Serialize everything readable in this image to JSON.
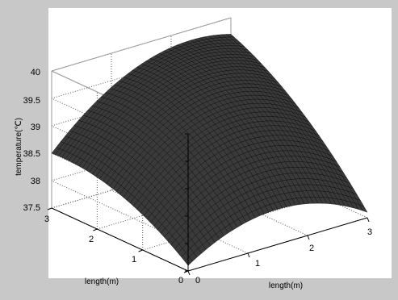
{
  "chart_data": {
    "type": "surface",
    "xlabel": "length(m)",
    "ylabel": "length(m)",
    "zlabel": "temperature(℃)",
    "x_ticks": [
      "0",
      "1",
      "2",
      "3"
    ],
    "y_ticks": [
      "0",
      "1",
      "2",
      "3"
    ],
    "z_ticks": [
      "37.5",
      "38",
      "38.5",
      "39",
      "39.5",
      "40"
    ],
    "xlim": [
      0,
      3
    ],
    "ylim": [
      0,
      3
    ],
    "zlim": [
      37.5,
      40
    ],
    "grid": true,
    "surface": {
      "description_values": "saddle-free dome, max near center",
      "corner_values": {
        "x0_y0": 37.6,
        "x3_y0": 37.6,
        "x0_y3": 38.5,
        "x3_y3": 39.7
      },
      "peak_value": 39.9,
      "color": "#1a1a1a"
    }
  }
}
